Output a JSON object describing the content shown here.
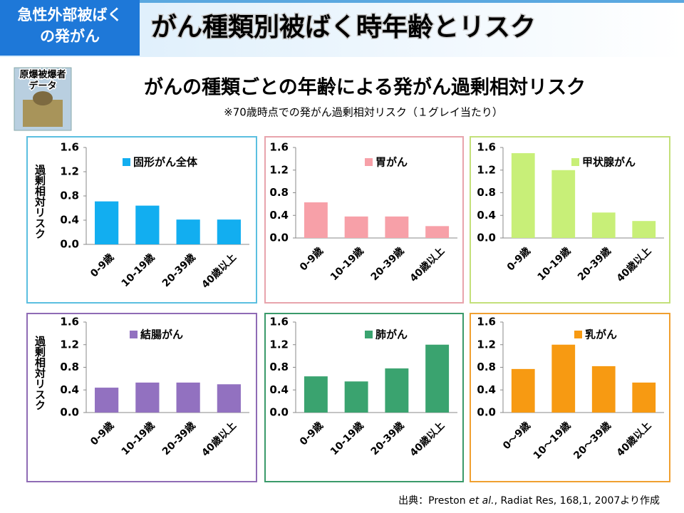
{
  "header": {
    "tag": [
      "急性外部被ばく",
      "の発がん"
    ],
    "title": "がん種類別被ばく時年齢とリスク"
  },
  "badge": [
    "原爆被爆者",
    "データ"
  ],
  "subtitle": "がんの種類ごとの年齢による発がん過剰相対リスク",
  "note": "※70歳時点での発がん過剰相対リスク（１グレイ当たり）",
  "source": [
    "出典：Preston ",
    "et al.",
    ", Radiat Res, 168,1, 2007より作成"
  ],
  "chart_data": [
    {
      "type": "bar",
      "ylabel": "過剰相対リスク",
      "categories": [
        "0-9歳",
        "10-19歳",
        "20-39歳",
        "40歳以上"
      ],
      "series": [
        {
          "name": "固形がん全体",
          "color": "#12aef0",
          "values": [
            0.71,
            0.64,
            0.41,
            0.41
          ]
        }
      ],
      "ylim": [
        0,
        1.6
      ],
      "yticks": [
        {
          "value": 0,
          "label": "0.0"
        },
        0.4,
        0.8,
        1.2,
        1.6
      ],
      "border": "#5bbfe0"
    },
    {
      "type": "bar",
      "categories": [
        "0-9歳",
        "10-19歳",
        "20-39歳",
        "40歳以上"
      ],
      "series": [
        {
          "name": "胃がん",
          "color": "#f7a0a8",
          "values": [
            0.63,
            0.38,
            0.38,
            0.21
          ]
        }
      ],
      "ylim": [
        0,
        1.6
      ],
      "yticks": [
        {
          "value": 0,
          "label": "0.0"
        },
        0.4,
        0.8,
        1.2,
        1.6
      ],
      "border": "#e8a4ac"
    },
    {
      "type": "bar",
      "categories": [
        "0-9歳",
        "10-19歳",
        "20-39歳",
        "40歳以上"
      ],
      "series": [
        {
          "name": "甲状腺がん",
          "color": "#c8ef78",
          "values": [
            1.5,
            1.2,
            0.45,
            0.3
          ]
        }
      ],
      "ylim": [
        0,
        1.6
      ],
      "yticks": [
        {
          "value": 0,
          "label": "0.0"
        },
        0.4,
        0.8,
        1.2,
        1.6
      ],
      "border": "#c3e07a"
    },
    {
      "type": "bar",
      "ylabel": "過剰相対リスク",
      "categories": [
        "0-9歳",
        "10-19歳",
        "20-39歳",
        "40歳以上"
      ],
      "series": [
        {
          "name": "結腸がん",
          "color": "#9271c0",
          "values": [
            0.44,
            0.53,
            0.53,
            0.5
          ]
        }
      ],
      "ylim": [
        0,
        1.6
      ],
      "yticks": [
        {
          "value": 0,
          "label": "0.0"
        },
        0.4,
        0.8,
        1.2,
        1.6
      ],
      "border": "#8f6bb5"
    },
    {
      "type": "bar",
      "categories": [
        "0-9歳",
        "10-19歳",
        "20-39歳",
        "40歳以上"
      ],
      "series": [
        {
          "name": "肺がん",
          "color": "#3aa36f",
          "values": [
            0.64,
            0.55,
            0.78,
            1.2
          ]
        }
      ],
      "ylim": [
        0,
        1.6
      ],
      "yticks": [
        {
          "value": 0,
          "label": "0.0"
        },
        0.4,
        0.8,
        1.2,
        1.6
      ],
      "border": "#3a9a6a"
    },
    {
      "type": "bar",
      "categories": [
        "0～9歳",
        "10～19歳",
        "20～39歳",
        "40歳以上"
      ],
      "series": [
        {
          "name": "乳がん",
          "color": "#f79a12",
          "values": [
            0.77,
            1.2,
            0.82,
            0.53
          ]
        }
      ],
      "ylim": [
        0,
        1.6
      ],
      "yticks": [
        {
          "value": 0,
          "label": "0.0"
        },
        0.4,
        0.8,
        1.2,
        1.6
      ],
      "border": "#f0a030"
    }
  ]
}
